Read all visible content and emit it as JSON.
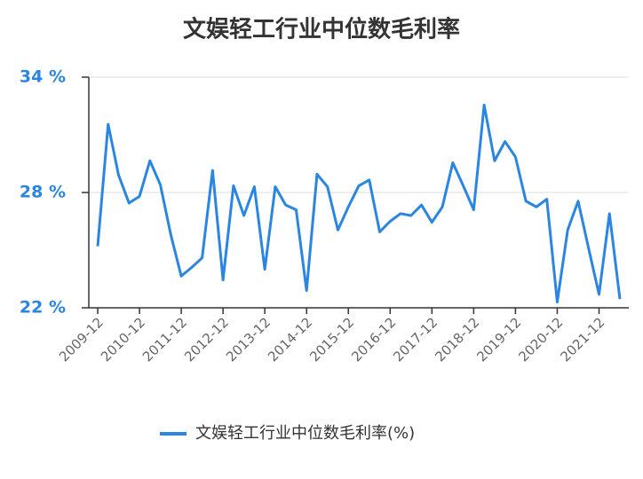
{
  "chart_data": {
    "type": "line",
    "title": "文娱轻工行业中位数毛利率",
    "categories": [
      "2009-12",
      null,
      null,
      null,
      "2010-12",
      null,
      null,
      null,
      "2011-12",
      null,
      null,
      null,
      "2012-12",
      null,
      null,
      null,
      "2013-12",
      null,
      null,
      null,
      "2014-12",
      null,
      null,
      null,
      "2015-12",
      null,
      null,
      null,
      "2016-12",
      null,
      null,
      null,
      "2017-12",
      null,
      null,
      null,
      "2018-12",
      null,
      null,
      null,
      "2019-12",
      null,
      null,
      null,
      "2020-12",
      null,
      null,
      null,
      "2021-12",
      null,
      null
    ],
    "series": [
      {
        "name": "文娱轻工行业中位数毛利率(%)",
        "color": "#2a86e0",
        "values": [
          25.2,
          31.55,
          28.9,
          27.45,
          27.8,
          29.65,
          28.4,
          25.8,
          23.65,
          24.1,
          24.6,
          29.15,
          23.45,
          28.35,
          26.8,
          28.3,
          24.0,
          28.3,
          27.35,
          27.1,
          22.9,
          28.95,
          28.3,
          26.05,
          27.25,
          28.35,
          28.65,
          25.95,
          26.5,
          26.9,
          26.8,
          27.35,
          26.45,
          27.25,
          29.55,
          28.35,
          27.1,
          32.55,
          29.65,
          30.65,
          29.85,
          27.55,
          27.25,
          27.65,
          22.3,
          26.05,
          27.55,
          25.1,
          22.7,
          26.9,
          22.45
        ]
      }
    ],
    "ylim": [
      22,
      34
    ],
    "yticks": [
      {
        "value": 22,
        "label": "22 %"
      },
      {
        "value": 28,
        "label": "28 %"
      },
      {
        "value": 34,
        "label": "34 %"
      }
    ],
    "grid": true,
    "legend": "bottom"
  }
}
